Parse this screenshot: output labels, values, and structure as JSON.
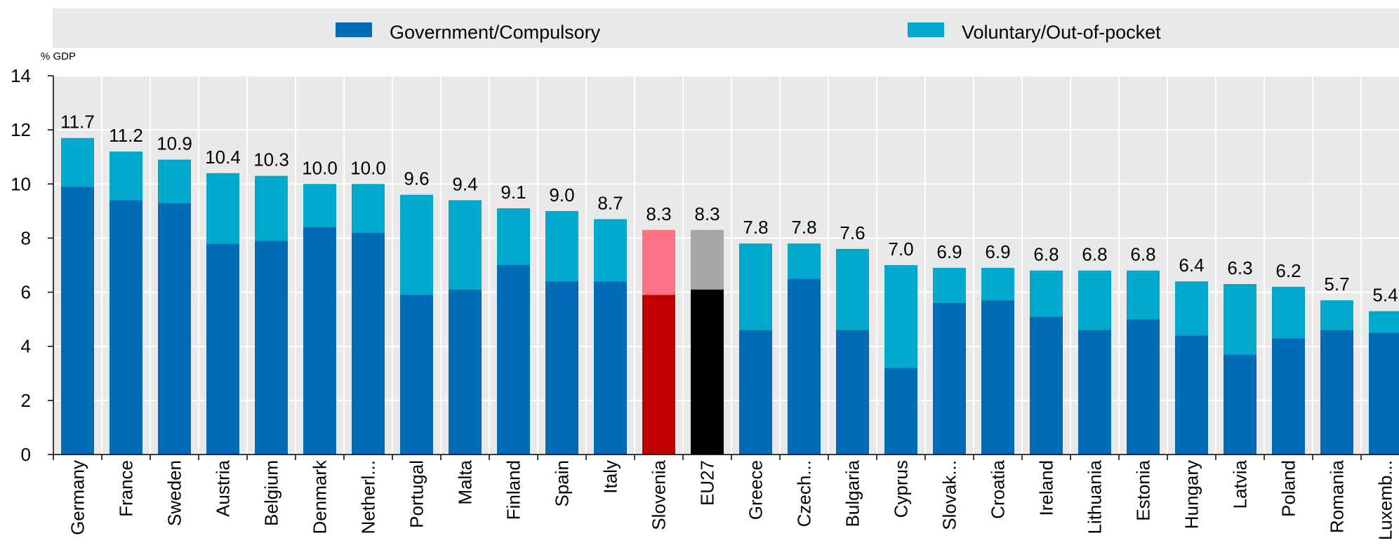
{
  "chart_data": {
    "type": "bar",
    "stacked": true,
    "ylabel": "% GDP",
    "ylim": [
      0,
      14
    ],
    "yticks": [
      0,
      2,
      4,
      6,
      8,
      10,
      12,
      14
    ],
    "grid": true,
    "legend_position": "top",
    "categories": [
      "Germany",
      "France",
      "Sweden",
      "Austria",
      "Belgium",
      "Denmark",
      "Netherl...",
      "Portugal",
      "Malta",
      "Finland",
      "Spain",
      "Italy",
      "Slovenia",
      "EU27",
      "Greece",
      "Czech...",
      "Bulgaria",
      "Cyprus",
      "Slovak...",
      "Croatia",
      "Ireland",
      "Lithuania",
      "Estonia",
      "Hungary",
      "Latvia",
      "Poland",
      "Romania",
      "Luxemb..."
    ],
    "series": [
      {
        "name": "Government/Compulsory",
        "color": "#006BB6",
        "values": [
          9.9,
          9.4,
          9.3,
          7.8,
          7.9,
          8.4,
          8.2,
          5.9,
          6.1,
          7.0,
          6.4,
          6.4,
          5.9,
          6.1,
          4.6,
          6.5,
          4.6,
          3.2,
          5.6,
          5.7,
          5.1,
          4.6,
          5.0,
          4.4,
          3.7,
          4.3,
          4.6,
          4.5
        ]
      },
      {
        "name": "Voluntary/Out-of-pocket",
        "color": "#00A9CC",
        "values": [
          1.8,
          1.8,
          1.6,
          2.6,
          2.4,
          1.6,
          1.8,
          3.7,
          3.3,
          2.1,
          2.6,
          2.3,
          2.4,
          2.2,
          3.2,
          1.3,
          3.0,
          3.8,
          1.3,
          1.2,
          1.7,
          2.2,
          1.8,
          2.0,
          2.6,
          1.9,
          1.1,
          0.8
        ]
      }
    ],
    "totals": [
      "11.7",
      "11.2",
      "10.9",
      "10.4",
      "10.3",
      "10.0",
      "10.0",
      "9.6",
      "9.4",
      "9.1",
      "9.0",
      "8.7",
      "8.3",
      "8.3",
      "7.8",
      "7.8",
      "7.6",
      "7.0",
      "6.9",
      "6.9",
      "6.8",
      "6.8",
      "6.8",
      "6.4",
      "6.3",
      "6.2",
      "5.7",
      "5.4"
    ],
    "highlights": {
      "Slovenia": {
        "bottom": "#C00000",
        "top": "#FF7285"
      },
      "EU27": {
        "bottom": "#000000",
        "top": "#A6A6A6"
      }
    },
    "background": "#E9E9E9",
    "grid_color": "#ffffff"
  }
}
